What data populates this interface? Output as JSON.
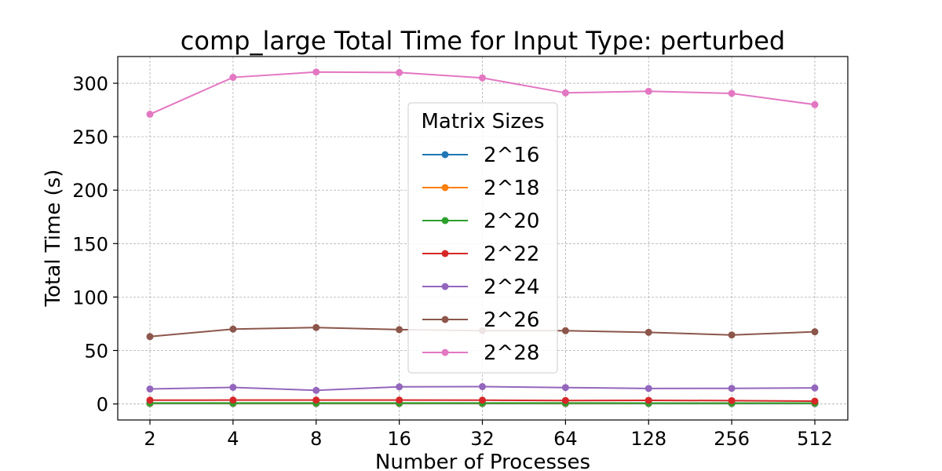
{
  "chart_data": {
    "type": "line",
    "title": "comp_large Total Time for Input Type: perturbed",
    "xlabel": "Number of Processes",
    "ylabel": "Total Time (s)",
    "categories": [
      "2",
      "4",
      "8",
      "16",
      "32",
      "64",
      "128",
      "256",
      "512"
    ],
    "ylim": [
      -15,
      325
    ],
    "yticks": [
      0,
      50,
      100,
      150,
      200,
      250,
      300
    ],
    "grid": true,
    "legend": {
      "title": "Matrix Sizes",
      "placement": "center"
    },
    "series": [
      {
        "name": "2^16",
        "color": "#1f77b4",
        "values": [
          0.3,
          0.3,
          0.3,
          0.3,
          0.3,
          0.3,
          0.3,
          0.3,
          0.3
        ]
      },
      {
        "name": "2^18",
        "color": "#ff7f0e",
        "values": [
          0.6,
          0.6,
          0.6,
          0.6,
          0.6,
          0.6,
          0.6,
          0.6,
          0.6
        ]
      },
      {
        "name": "2^20",
        "color": "#2ca02c",
        "values": [
          0.9,
          0.9,
          0.9,
          0.9,
          0.9,
          0.9,
          0.8,
          0.8,
          0.8
        ]
      },
      {
        "name": "2^22",
        "color": "#d62728",
        "values": [
          3.5,
          3.6,
          3.6,
          3.6,
          3.5,
          3.2,
          3.4,
          3.1,
          2.6
        ]
      },
      {
        "name": "2^24",
        "color": "#9467bd",
        "values": [
          14,
          15.5,
          12.7,
          16,
          16.2,
          15.3,
          14.5,
          14.6,
          15
        ]
      },
      {
        "name": "2^26",
        "color": "#8c564b",
        "values": [
          63,
          70,
          71.5,
          69.5,
          68.5,
          68.5,
          67,
          64.5,
          67.5
        ]
      },
      {
        "name": "2^28",
        "color": "#e377c2",
        "values": [
          271,
          305.5,
          310.5,
          310,
          305,
          291,
          292.5,
          290.5,
          280
        ]
      }
    ]
  }
}
